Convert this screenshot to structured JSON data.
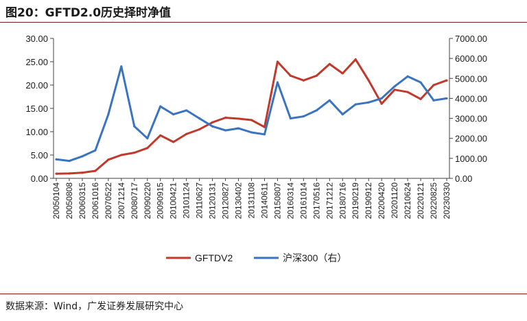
{
  "header": {
    "title": "图20：GFTD2.0历史择时净值"
  },
  "footer": {
    "source": "数据来源：Wind，广发证券发展研究中心"
  },
  "colors": {
    "series1": "#c0392b",
    "series2": "#3a74c0",
    "axis": "#404040"
  },
  "chart_data": {
    "type": "line",
    "title": "",
    "xlabel": "",
    "ylabel": "",
    "y_left": {
      "lim": [
        0,
        30
      ],
      "ticks": [
        "0.00",
        "5.00",
        "10.00",
        "15.00",
        "20.00",
        "25.00",
        "30.00"
      ]
    },
    "y_right": {
      "lim": [
        0,
        7000
      ],
      "ticks": [
        "0.00",
        "1000.00",
        "2000.00",
        "3000.00",
        "4000.00",
        "5000.00",
        "6000.00",
        "7000.00"
      ]
    },
    "x_ticks": [
      "20050104",
      "20050808",
      "20060315",
      "20061016",
      "20070522",
      "20071214",
      "20080717",
      "20090220",
      "20090915",
      "20100421",
      "20101124",
      "20110627",
      "20120131",
      "20120827",
      "20130402",
      "20131108",
      "20140611",
      "20150807",
      "20160314",
      "20161014",
      "20170516",
      "20171212",
      "20180716",
      "20190219",
      "20190912",
      "20200420",
      "20201120",
      "20210624",
      "20220121",
      "20220825",
      "20230330"
    ],
    "legend": {
      "position": "bottom"
    },
    "series": [
      {
        "name": "GFTDV2",
        "axis": "left",
        "values": [
          1.0,
          1.05,
          1.2,
          1.6,
          4.0,
          5.0,
          5.5,
          6.5,
          9.2,
          7.8,
          9.5,
          10.5,
          12.0,
          13.0,
          12.8,
          12.5,
          11.0,
          25.0,
          22.0,
          21.0,
          22.0,
          24.5,
          22.5,
          25.5,
          21.0,
          16.0,
          19.0,
          18.5,
          17.0,
          20.0,
          21.0
        ]
      },
      {
        "name": "沪深300（右）",
        "axis": "right",
        "values": [
          950,
          870,
          1100,
          1400,
          3200,
          5600,
          2600,
          2000,
          3600,
          3200,
          3400,
          3000,
          2600,
          2400,
          2500,
          2300,
          2200,
          4800,
          3000,
          3100,
          3400,
          3900,
          3200,
          3700,
          3800,
          4000,
          4600,
          5100,
          4800,
          3900,
          4000
        ]
      }
    ]
  }
}
